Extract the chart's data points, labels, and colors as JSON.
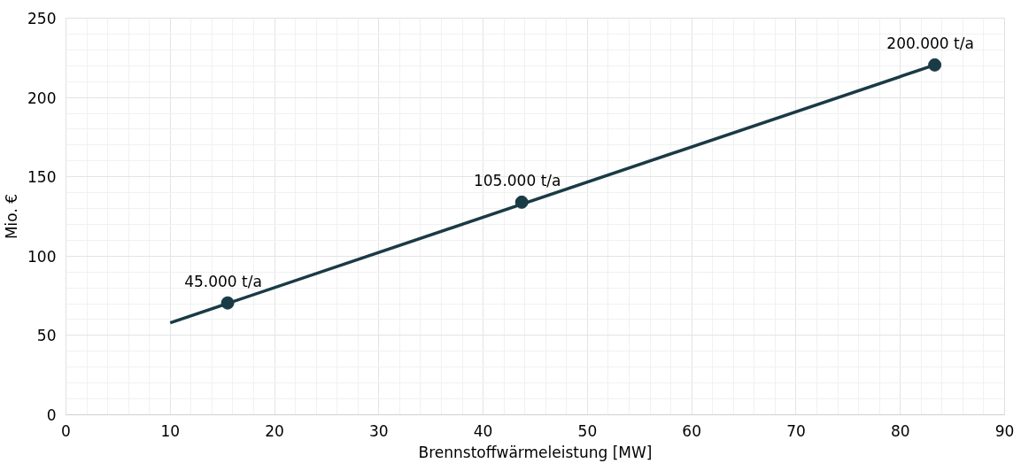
{
  "chart_data": {
    "type": "line",
    "xlabel": "Brennstoffwärmeleistung [MW]",
    "ylabel": "Mio. €",
    "series": [
      {
        "color": "#1a3a45",
        "x": [
          10,
          83.3
        ],
        "values": [
          58,
          220.5
        ],
        "marker": "none"
      },
      {
        "type": "scatter",
        "color": "#1a3a45",
        "x": [
          15.5,
          43.7,
          83.3
        ],
        "values": [
          70.5,
          134,
          220.5
        ],
        "marker": "circle"
      }
    ],
    "annotations": [
      {
        "text": "45.000 t/a",
        "x": 15.5,
        "y": 70.5
      },
      {
        "text": "105.000 t/a",
        "x": 43.7,
        "y": 134
      },
      {
        "text": "200.000 t/a",
        "x": 83.3,
        "y": 220.5
      }
    ],
    "xlim": [
      0,
      90
    ],
    "xticks": [
      0,
      10,
      20,
      30,
      40,
      50,
      60,
      70,
      80,
      90
    ],
    "ylim": [
      0,
      250
    ],
    "yticks": [
      0,
      50,
      100,
      150,
      200,
      250
    ],
    "grid": true
  }
}
